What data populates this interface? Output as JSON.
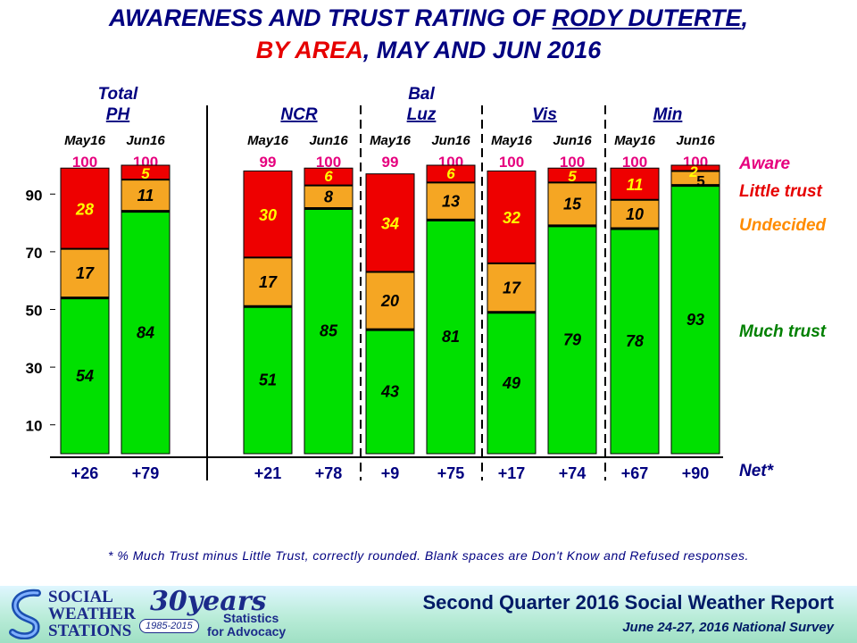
{
  "title": {
    "line1_prefix": "AWARENESS AND TRUST RATING OF ",
    "line1_name": "RODY DUTERTE",
    "line1_suffix": ",",
    "line2_area": "BY AREA",
    "line2_rest": ", MAY AND JUN 2016"
  },
  "colors": {
    "much_trust": "#00e000",
    "undecided": "#f5a623",
    "little_trust": "#ee0000",
    "aware_text": "#e6007e",
    "little_trust_text": "#e60000",
    "undecided_text": "#ff8c00",
    "much_trust_text": "#008000",
    "header_text": "#000080"
  },
  "chart_data": {
    "type": "bar",
    "stacked": true,
    "ylim": [
      0,
      100
    ],
    "yticks": [
      10,
      30,
      50,
      70,
      90
    ],
    "groups": [
      {
        "label_top": "Total",
        "label": "PH",
        "categories": [
          "May16",
          "Jun16"
        ],
        "aware": [
          "100",
          "100"
        ],
        "much_trust": [
          54,
          84
        ],
        "undecided": [
          17,
          11
        ],
        "little_trust": [
          28,
          5
        ],
        "net": [
          "+26",
          "+79"
        ]
      },
      {
        "label_top": "",
        "label": "NCR",
        "categories": [
          "May16",
          "Jun16"
        ],
        "aware": [
          "99",
          "100"
        ],
        "much_trust": [
          51,
          85
        ],
        "undecided": [
          17,
          8
        ],
        "little_trust": [
          30,
          6
        ],
        "net": [
          "+21",
          "+78"
        ]
      },
      {
        "label_top": "Bal",
        "label": "Luz",
        "categories": [
          "May16",
          "Jun16"
        ],
        "aware": [
          "99",
          "100"
        ],
        "much_trust": [
          43,
          81
        ],
        "undecided": [
          20,
          13
        ],
        "little_trust": [
          34,
          6
        ],
        "net": [
          "+9",
          "+75"
        ]
      },
      {
        "label_top": "",
        "label": "Vis",
        "categories": [
          "May16",
          "Jun16"
        ],
        "aware": [
          "100",
          "100"
        ],
        "much_trust": [
          49,
          79
        ],
        "undecided": [
          17,
          15
        ],
        "little_trust": [
          32,
          5
        ],
        "net": [
          "+17",
          "+74"
        ]
      },
      {
        "label_top": "",
        "label": "Min",
        "categories": [
          "May16",
          "Jun16"
        ],
        "aware": [
          "100",
          "100"
        ],
        "much_trust": [
          78,
          93
        ],
        "undecided": [
          10,
          5
        ],
        "little_trust": [
          11,
          2
        ],
        "net": [
          "+67",
          "+90"
        ]
      }
    ],
    "legend": {
      "aware": "Aware",
      "little_trust": "Little trust",
      "undecided": "Undecided",
      "much_trust": "Much trust",
      "net": "Net*"
    }
  },
  "footnote": "* % Much Trust minus Little Trust, correctly rounded.  Blank spaces  are Don't Know and Refused responses.",
  "footer": {
    "org_line1": "SOCIAL",
    "org_line2": "WEATHER",
    "org_line3": "STATIONS",
    "anniv": "30years",
    "anniv_range": "1985-2015",
    "tagline1": "Statistics",
    "tagline2": "for Advocacy",
    "report_title": "Second Quarter 2016 Social Weather Report",
    "survey": "June 24-27, 2016 National Survey"
  }
}
